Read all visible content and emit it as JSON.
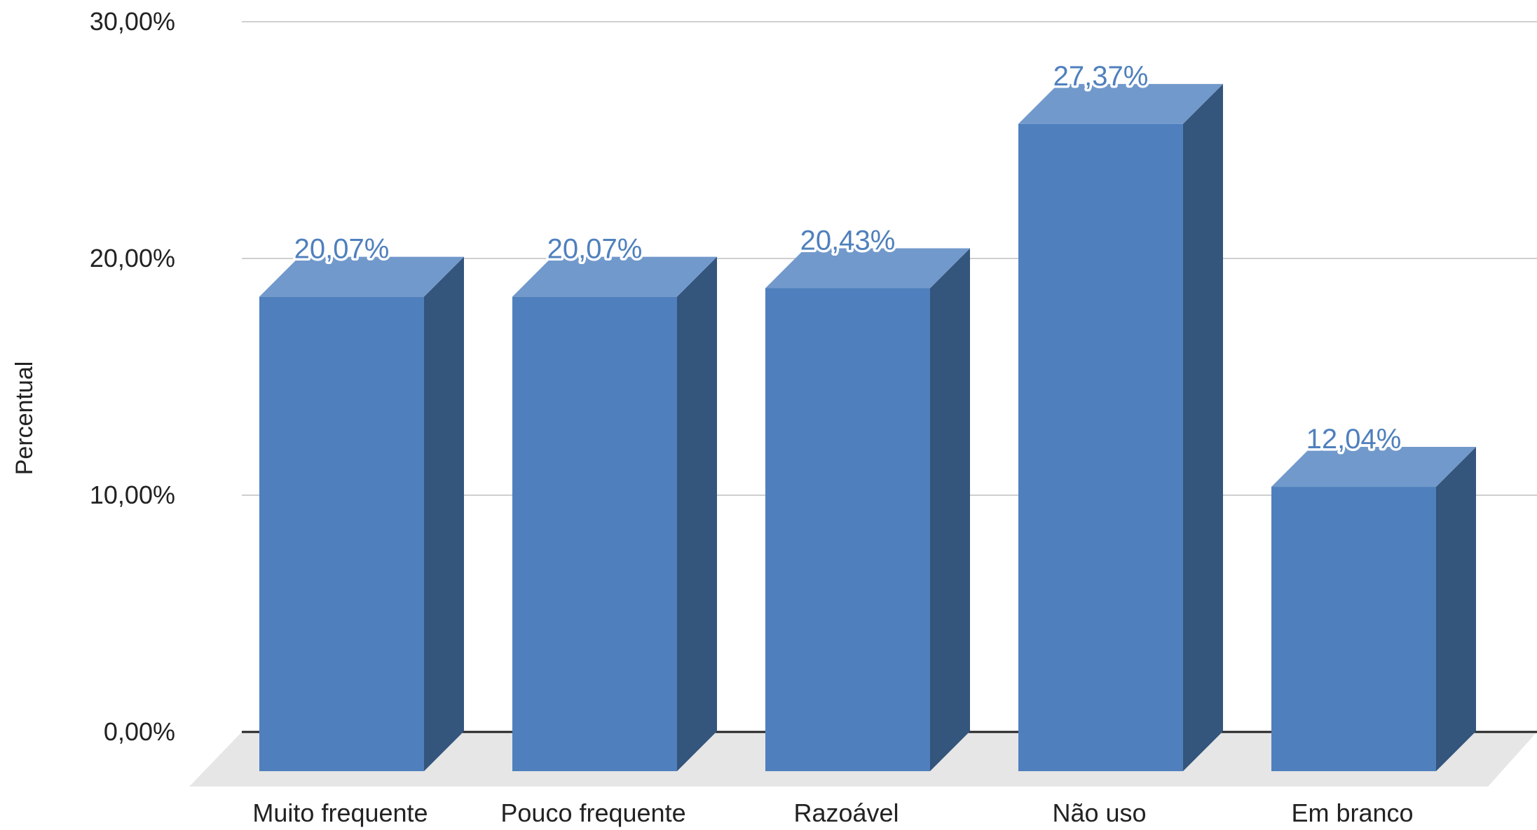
{
  "chart_data": {
    "type": "bar",
    "categories": [
      "Muito frequente",
      "Pouco frequente",
      "Razoável",
      "Não uso",
      "Em branco"
    ],
    "values": [
      20.07,
      20.07,
      20.43,
      27.37,
      12.04
    ],
    "value_labels": [
      "20,07%",
      "20,07%",
      "20,43%",
      "27,37%",
      "12,04%"
    ],
    "title": "",
    "xlabel": "",
    "ylabel": "Percentual",
    "ylim": [
      0,
      30
    ],
    "y_ticks": [
      {
        "value": 0,
        "label": "0,00%"
      },
      {
        "value": 10,
        "label": "10,00%"
      },
      {
        "value": 20,
        "label": "20,00%"
      },
      {
        "value": 30,
        "label": "30,00%"
      }
    ],
    "grid": true,
    "style": "3d-column",
    "colors": {
      "front": "#4f80bd",
      "top": "#7199cb",
      "side": "#34557c",
      "floor": "#e6e6e6",
      "grid": "#cfcfcf",
      "baseline": "#222222",
      "label": "#4f80bd"
    }
  }
}
